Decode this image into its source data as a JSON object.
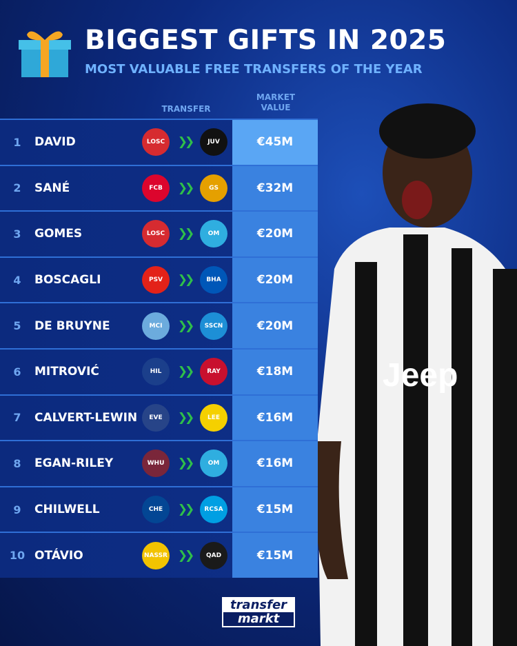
{
  "header": {
    "title": "BIGGEST GIFTS IN 2025",
    "subtitle": "MOST VALUABLE FREE TRANSFERS OF THE YEAR",
    "icon": "gift-icon"
  },
  "columns": {
    "transfer": "TRANSFER",
    "market_value_1": "MARKET",
    "market_value_2": "VALUE"
  },
  "rows": [
    {
      "rank": "1",
      "name": "DAVID",
      "from": "LOSC",
      "from_color": "#d62b30",
      "to": "JUV",
      "to_color": "#111111",
      "value": "€45M"
    },
    {
      "rank": "2",
      "name": "SANÉ",
      "from": "FCB",
      "from_color": "#dc052d",
      "to": "GS",
      "to_color": "#e5a000",
      "value": "€32M"
    },
    {
      "rank": "3",
      "name": "GOMES",
      "from": "LOSC",
      "from_color": "#d62b30",
      "to": "OM",
      "to_color": "#2faee0",
      "value": "€20M"
    },
    {
      "rank": "4",
      "name": "BOSCAGLI",
      "from": "PSV",
      "from_color": "#e32219",
      "to": "BHA",
      "to_color": "#0057b8",
      "value": "€20M"
    },
    {
      "rank": "5",
      "name": "DE BRUYNE",
      "from": "MCI",
      "from_color": "#6cabdd",
      "to": "SSCN",
      "to_color": "#1d8fd6",
      "value": "€20M"
    },
    {
      "rank": "6",
      "name": "MITROVIĆ",
      "from": "HIL",
      "from_color": "#1b3f8b",
      "to": "RAY",
      "to_color": "#c8102e",
      "value": "€18M"
    },
    {
      "rank": "7",
      "name": "CALVERT-LEWIN",
      "from": "EVE",
      "from_color": "#274488",
      "to": "LEE",
      "to_color": "#f5d000",
      "value": "€16M"
    },
    {
      "rank": "8",
      "name": "EGAN-RILEY",
      "from": "WHU",
      "from_color": "#7a263a",
      "to": "OM",
      "to_color": "#2faee0",
      "value": "€16M"
    },
    {
      "rank": "9",
      "name": "CHILWELL",
      "from": "CHE",
      "from_color": "#034694",
      "to": "RCSA",
      "to_color": "#009fe3",
      "value": "€15M"
    },
    {
      "rank": "10",
      "name": "OTÁVIO",
      "from": "NASSR",
      "from_color": "#f2c300",
      "to": "QAD",
      "to_color": "#1a1a1a",
      "value": "€15M"
    }
  ],
  "logo": {
    "line1": "transfer",
    "line2": "markt"
  }
}
